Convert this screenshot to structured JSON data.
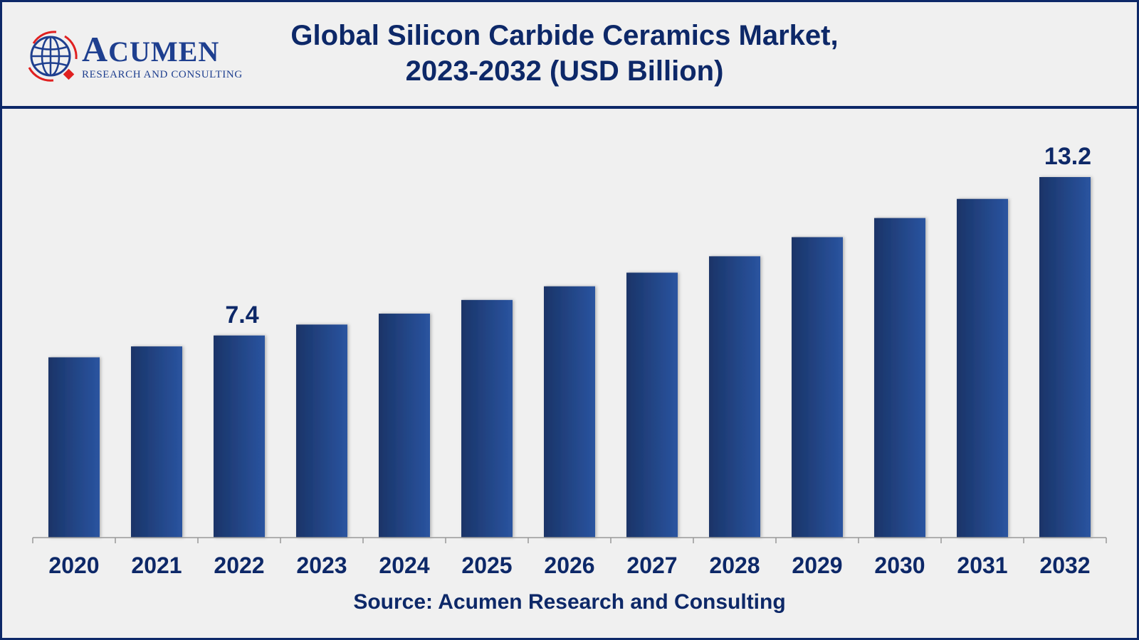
{
  "logo": {
    "name_first": "A",
    "name_rest": "CUMEN",
    "tagline": "RESEARCH AND CONSULTING",
    "colors": {
      "primary": "#1e3f8f",
      "accent": "#e02020"
    }
  },
  "source": "Source: Acumen Research and Consulting",
  "chart_data": {
    "type": "bar",
    "title": "Global Silicon Carbide Ceramics Market,",
    "subtitle": "2023-2032 (USD Billion)",
    "xlabel": "",
    "ylabel": "",
    "categories": [
      "2020",
      "2021",
      "2022",
      "2023",
      "2024",
      "2025",
      "2026",
      "2027",
      "2028",
      "2029",
      "2030",
      "2031",
      "2032"
    ],
    "values": [
      6.6,
      7.0,
      7.4,
      7.8,
      8.2,
      8.7,
      9.2,
      9.7,
      10.3,
      11.0,
      11.7,
      12.4,
      13.2
    ],
    "data_labels": [
      {
        "category": "2022",
        "text": "7.4"
      },
      {
        "category": "2032",
        "text": "13.2"
      }
    ],
    "ylim": [
      0,
      13.2
    ],
    "grid": false,
    "legend": "none",
    "colors": {
      "bar_dark": "#1a3468",
      "bar_light": "#2a54a0",
      "text": "#0d2868",
      "axis": "#999999"
    }
  }
}
